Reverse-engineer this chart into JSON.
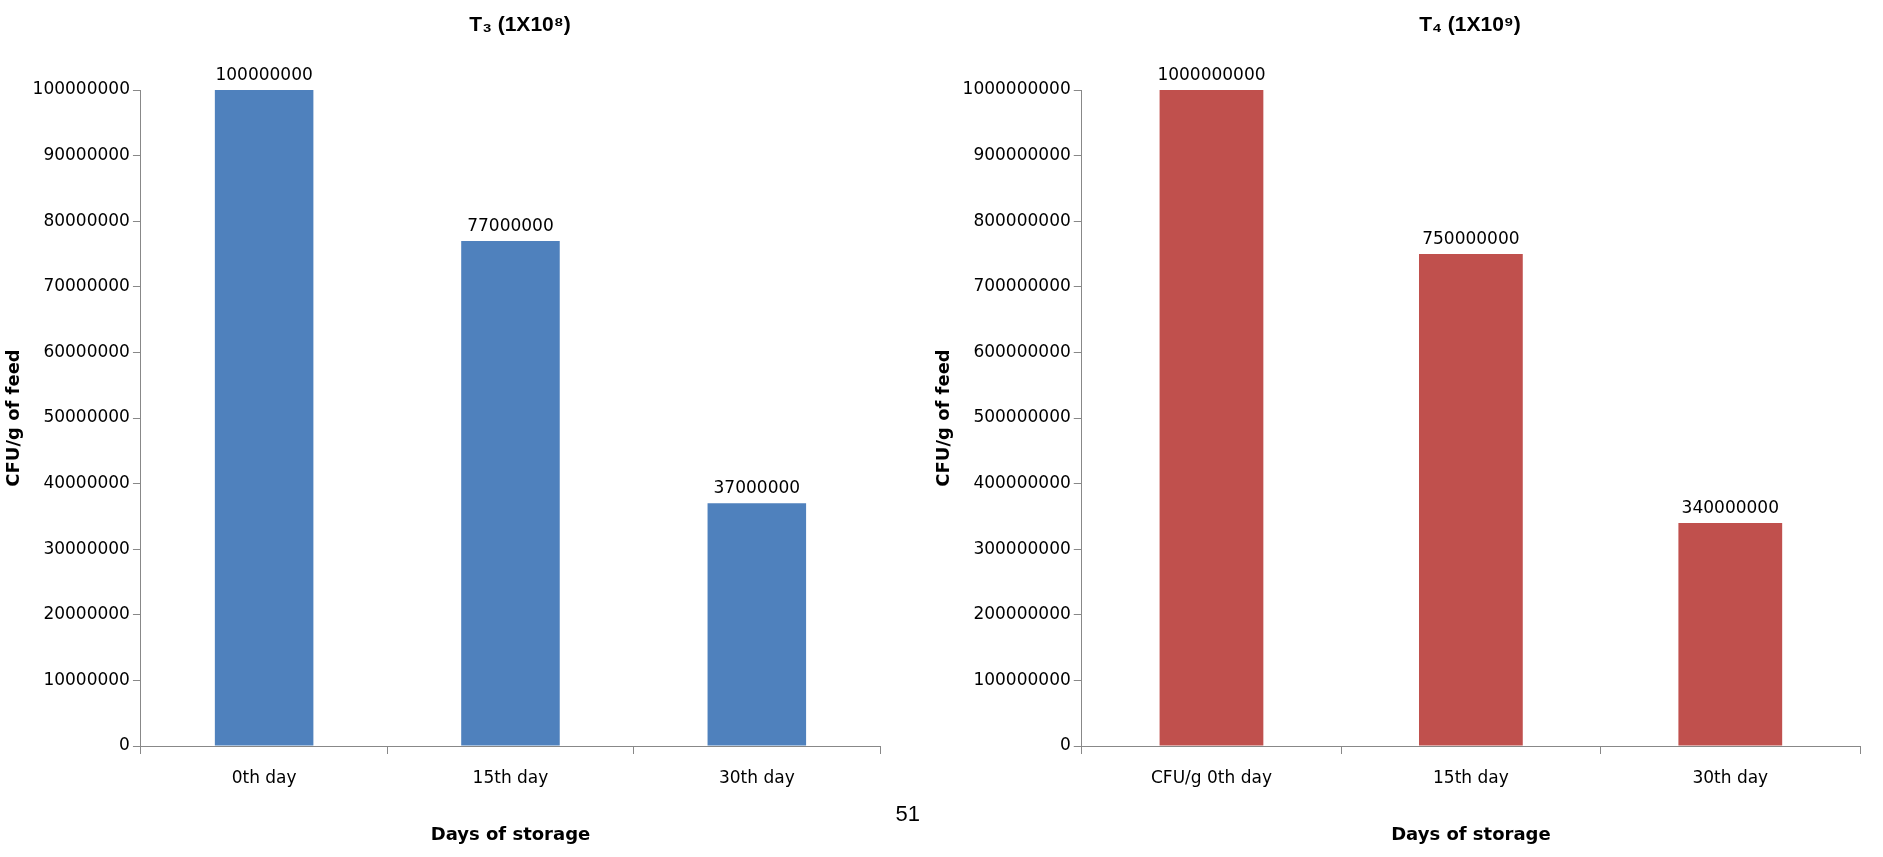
{
  "chart_data": [
    {
      "type": "bar",
      "title": "T₃ (1X10⁸)",
      "xlabel": "Days of storage",
      "ylabel": "CFU/g of feed",
      "categories": [
        "0th day",
        "15th day",
        "30th day"
      ],
      "values": [
        100000000,
        77000000,
        37000000
      ],
      "color": "#4f81bd",
      "ylim": [
        0,
        100000000
      ],
      "yticks": [
        0,
        10000000,
        20000000,
        30000000,
        40000000,
        50000000,
        60000000,
        70000000,
        80000000,
        90000000,
        100000000
      ],
      "grid": false,
      "data_labels": true,
      "annotations": [
        "51"
      ]
    },
    {
      "type": "bar",
      "title": "T₄ (1X10⁹)",
      "xlabel": "Days of storage",
      "ylabel": "CFU/g of feed",
      "categories": [
        "CFU/g 0th day",
        "15th day",
        "30th day"
      ],
      "values": [
        1000000000,
        750000000,
        340000000
      ],
      "color": "#c0504d",
      "ylim": [
        0,
        1000000000
      ],
      "yticks": [
        0,
        100000000,
        200000000,
        300000000,
        400000000,
        500000000,
        600000000,
        700000000,
        800000000,
        900000000,
        1000000000
      ],
      "grid": false,
      "data_labels": true
    }
  ]
}
